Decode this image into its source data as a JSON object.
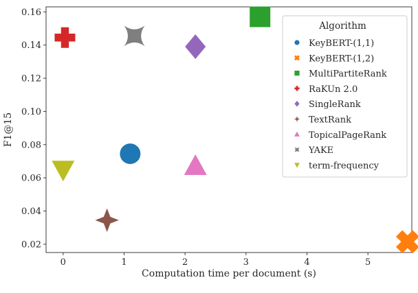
{
  "chart_data": {
    "type": "scatter",
    "title": "",
    "xlabel": "Computation time per document (s)",
    "ylabel": "F1@15",
    "xlim": [
      -0.28,
      5.72
    ],
    "ylim": [
      0.015,
      0.163
    ],
    "xticks": [
      0,
      1,
      2,
      3,
      4,
      5
    ],
    "yticks": [
      0.02,
      0.04,
      0.06,
      0.08,
      0.1,
      0.12,
      0.14,
      0.16
    ],
    "ytick_labels": [
      "0.02",
      "0.04",
      "0.06",
      "0.08",
      "0.10",
      "0.12",
      "0.14",
      "0.16"
    ],
    "xtick_labels": [
      "0",
      "1",
      "2",
      "3",
      "4",
      "5"
    ],
    "grid": false,
    "legend_title": "Algorithm",
    "legend_position": "top-right",
    "series": [
      {
        "name": "KeyBERT-(1,1)",
        "marker": "circle",
        "color": "#1f77b4",
        "x": 1.1,
        "y": 0.0745
      },
      {
        "name": "KeyBERT-(1,2)",
        "marker": "x",
        "color": "#ff7f0e",
        "x": 5.65,
        "y": 0.0215
      },
      {
        "name": "MultiPartiteRank",
        "marker": "square",
        "color": "#2ca02c",
        "x": 3.23,
        "y": 0.157
      },
      {
        "name": "RaKUn 2.0",
        "marker": "plus",
        "color": "#d62728",
        "x": 0.03,
        "y": 0.1445
      },
      {
        "name": "SingleRank",
        "marker": "diamond",
        "color": "#9467bd",
        "x": 2.17,
        "y": 0.139
      },
      {
        "name": "TextRank",
        "marker": "star4",
        "color": "#8c564b",
        "x": 0.72,
        "y": 0.0345
      },
      {
        "name": "TopicalPageRank",
        "marker": "triangle-up",
        "color": "#e377c2",
        "x": 2.17,
        "y": 0.067
      },
      {
        "name": "YAKE",
        "marker": "x-curved",
        "color": "#7f7f7f",
        "x": 1.17,
        "y": 0.1455
      },
      {
        "name": "term-frequency",
        "marker": "triangle-down",
        "color": "#bcbd22",
        "x": 0.0,
        "y": 0.065
      }
    ]
  }
}
